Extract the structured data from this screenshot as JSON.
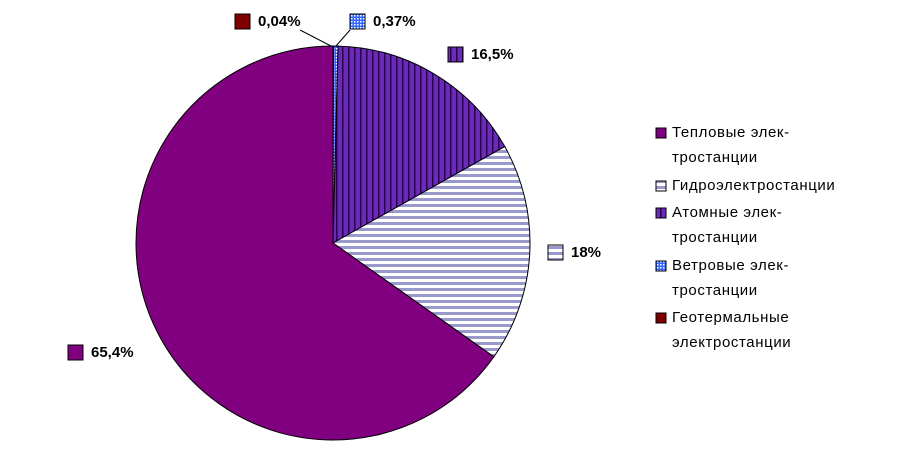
{
  "chart_data": {
    "type": "pie",
    "categories": [
      "Тепловые элек-\nтростанции",
      "Гидроэлектростанции",
      "Атомные элек-\nтростанции",
      "Ветровые элек-\nтростанции",
      "Геотермальные\nэлектростанции"
    ],
    "values": [
      65.4,
      18,
      16.5,
      0.37,
      0.04
    ],
    "value_labels": [
      "65,4%",
      "18%",
      "16,5%",
      "0,37%",
      "0,04%"
    ],
    "colors": [
      "#800080",
      "#9999cc",
      "#6a2cb8",
      "#3366ff",
      "#800000"
    ],
    "patterns": [
      "solid",
      "horizontal",
      "vertical",
      "dots",
      "solid"
    ],
    "legend": "right"
  }
}
